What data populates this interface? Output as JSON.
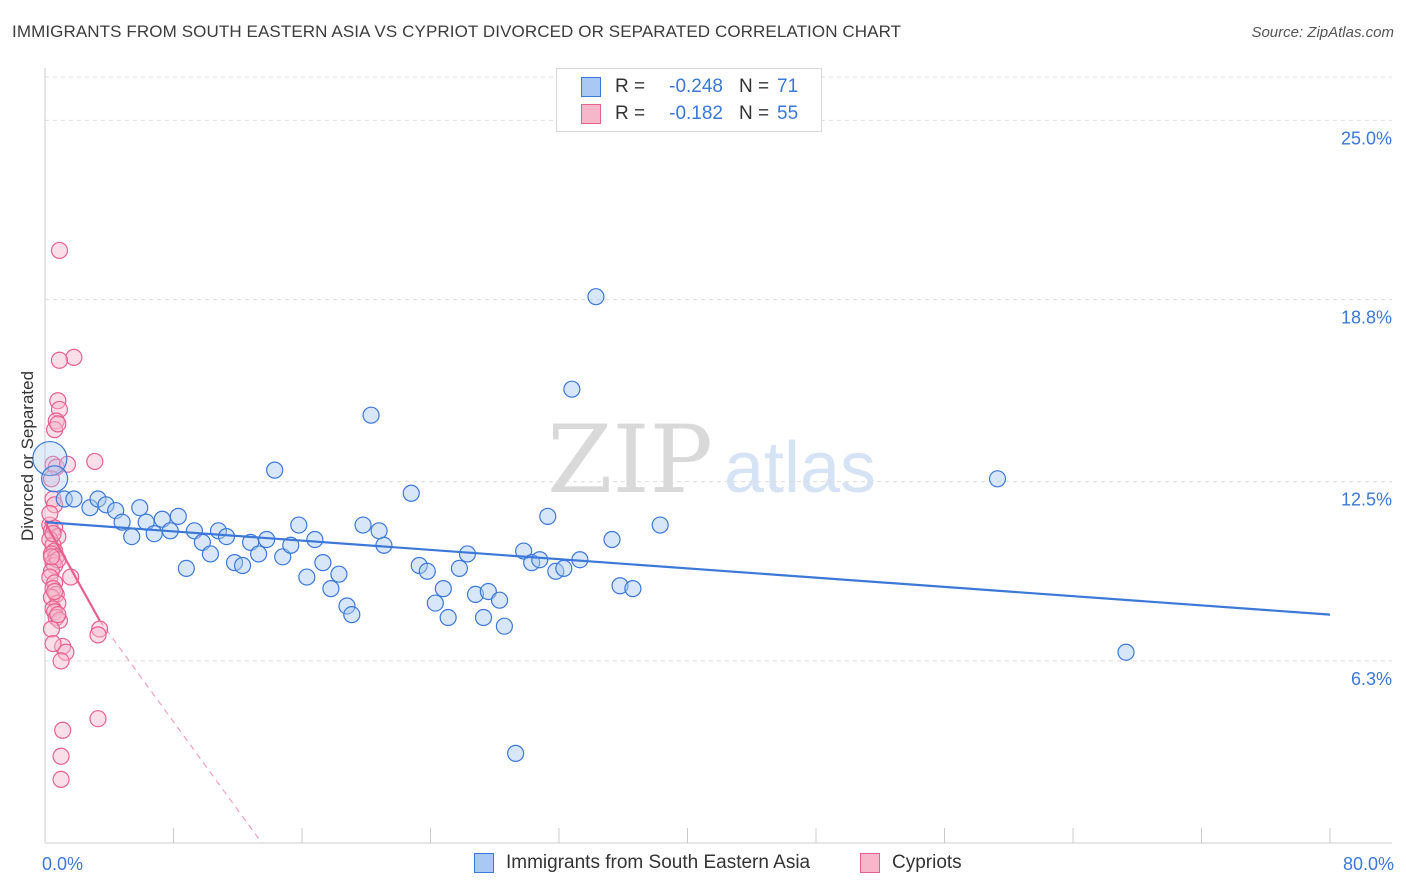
{
  "title": "IMMIGRANTS FROM SOUTH EASTERN ASIA VS CYPRIOT DIVORCED OR SEPARATED CORRELATION CHART",
  "source": "Source: ZipAtlas.com",
  "watermark": {
    "zip": "ZIP",
    "atlas": "atlas"
  },
  "colors": {
    "blue": "#3b78d8",
    "blue_fill": "#a9c8f3",
    "pink": "#e8608e",
    "pink_fill": "#f7b7cb",
    "grid": "#dcdcdc"
  },
  "legend": {
    "rows": [
      {
        "r_label": "R =",
        "r_value": "-0.248",
        "n_label": "N =",
        "n_value": "71"
      },
      {
        "r_label": "R =",
        "r_value": "-0.182",
        "n_label": "N =",
        "n_value": "55"
      }
    ]
  },
  "bottom_legend": [
    "Immigrants from South Eastern Asia",
    "Cypriots"
  ],
  "chart_data": {
    "type": "scatter",
    "title": "IMMIGRANTS FROM SOUTH EASTERN ASIA VS CYPRIOT DIVORCED OR SEPARATED CORRELATION CHART",
    "xlabel": "",
    "ylabel": "Divorced or Separated",
    "xlim": [
      0,
      80
    ],
    "ylim": [
      0,
      26.5
    ],
    "x_tick_labels": [
      "0.0%",
      "80.0%"
    ],
    "y_ticks": [
      6.3,
      12.5,
      18.8,
      25.0
    ],
    "y_tick_labels": [
      "6.3%",
      "12.5%",
      "18.8%",
      "25.0%"
    ],
    "series": [
      {
        "name": "Immigrants from South Eastern Asia",
        "r": -0.248,
        "n": 71,
        "trend": {
          "x": [
            0,
            80
          ],
          "y": [
            11.1,
            7.9
          ]
        },
        "points": [
          [
            0.3,
            13.3
          ],
          [
            0.6,
            12.6
          ],
          [
            1.2,
            11.9
          ],
          [
            1.8,
            11.9
          ],
          [
            2.8,
            11.6
          ],
          [
            3.3,
            11.9
          ],
          [
            3.8,
            11.7
          ],
          [
            4.4,
            11.5
          ],
          [
            4.8,
            11.1
          ],
          [
            5.4,
            10.6
          ],
          [
            5.9,
            11.6
          ],
          [
            6.3,
            11.1
          ],
          [
            6.8,
            10.7
          ],
          [
            7.3,
            11.2
          ],
          [
            7.8,
            10.8
          ],
          [
            8.3,
            11.3
          ],
          [
            8.8,
            9.5
          ],
          [
            9.3,
            10.8
          ],
          [
            9.8,
            10.4
          ],
          [
            10.3,
            10.0
          ],
          [
            10.8,
            10.8
          ],
          [
            11.3,
            10.6
          ],
          [
            11.8,
            9.7
          ],
          [
            12.3,
            9.6
          ],
          [
            12.8,
            10.4
          ],
          [
            13.3,
            10.0
          ],
          [
            13.8,
            10.5
          ],
          [
            14.3,
            12.9
          ],
          [
            14.8,
            9.9
          ],
          [
            15.3,
            10.3
          ],
          [
            15.8,
            11.0
          ],
          [
            16.3,
            9.2
          ],
          [
            16.8,
            10.5
          ],
          [
            17.3,
            9.7
          ],
          [
            17.8,
            8.8
          ],
          [
            18.3,
            9.3
          ],
          [
            18.8,
            8.2
          ],
          [
            19.1,
            7.9
          ],
          [
            19.8,
            11.0
          ],
          [
            20.3,
            14.8
          ],
          [
            20.8,
            10.8
          ],
          [
            21.1,
            10.3
          ],
          [
            22.8,
            12.1
          ],
          [
            23.3,
            9.6
          ],
          [
            23.8,
            9.4
          ],
          [
            24.3,
            8.3
          ],
          [
            24.8,
            8.8
          ],
          [
            25.1,
            7.8
          ],
          [
            25.8,
            9.5
          ],
          [
            26.3,
            10.0
          ],
          [
            26.8,
            8.6
          ],
          [
            27.3,
            7.8
          ],
          [
            27.6,
            8.7
          ],
          [
            28.3,
            8.4
          ],
          [
            28.6,
            7.5
          ],
          [
            29.3,
            3.1
          ],
          [
            29.8,
            10.1
          ],
          [
            30.3,
            9.7
          ],
          [
            30.8,
            9.8
          ],
          [
            31.3,
            11.3
          ],
          [
            31.8,
            9.4
          ],
          [
            32.3,
            9.5
          ],
          [
            32.8,
            15.7
          ],
          [
            33.3,
            9.8
          ],
          [
            34.3,
            18.9
          ],
          [
            35.3,
            10.5
          ],
          [
            35.8,
            8.9
          ],
          [
            36.6,
            8.8
          ],
          [
            38.3,
            11.0
          ],
          [
            59.3,
            12.6
          ],
          [
            67.3,
            6.6
          ]
        ]
      },
      {
        "name": "Cypriots",
        "r": -0.182,
        "n": 55,
        "trend": {
          "x": [
            0,
            3.4
          ],
          "y": [
            11.1,
            7.7
          ]
        },
        "trend_dashed": {
          "x": [
            3.4,
            13.5
          ],
          "y": [
            7.7,
            0
          ]
        },
        "points": [
          [
            0.9,
            20.5
          ],
          [
            1.8,
            16.8
          ],
          [
            0.9,
            16.7
          ],
          [
            0.8,
            15.3
          ],
          [
            0.9,
            15.0
          ],
          [
            0.7,
            14.6
          ],
          [
            0.6,
            14.3
          ],
          [
            0.8,
            14.5
          ],
          [
            3.1,
            13.2
          ],
          [
            0.5,
            13.1
          ],
          [
            0.7,
            13.0
          ],
          [
            1.4,
            13.1
          ],
          [
            0.4,
            12.6
          ],
          [
            0.5,
            11.9
          ],
          [
            0.6,
            11.7
          ],
          [
            0.3,
            11.0
          ],
          [
            0.4,
            10.8
          ],
          [
            0.6,
            10.9
          ],
          [
            0.8,
            10.6
          ],
          [
            0.3,
            10.5
          ],
          [
            0.5,
            10.3
          ],
          [
            0.6,
            10.1
          ],
          [
            0.4,
            10.0
          ],
          [
            0.7,
            9.9
          ],
          [
            0.5,
            9.7
          ],
          [
            0.6,
            9.6
          ],
          [
            0.8,
            9.8
          ],
          [
            0.4,
            9.4
          ],
          [
            0.3,
            9.2
          ],
          [
            0.6,
            9.0
          ],
          [
            0.5,
            8.8
          ],
          [
            0.7,
            8.6
          ],
          [
            0.4,
            8.5
          ],
          [
            0.8,
            8.3
          ],
          [
            0.5,
            8.1
          ],
          [
            0.6,
            8.0
          ],
          [
            0.7,
            7.8
          ],
          [
            0.9,
            7.7
          ],
          [
            0.4,
            7.4
          ],
          [
            1.6,
            9.2
          ],
          [
            3.4,
            7.4
          ],
          [
            3.3,
            7.2
          ],
          [
            1.1,
            6.8
          ],
          [
            1.3,
            6.6
          ],
          [
            1.0,
            6.3
          ],
          [
            3.3,
            4.3
          ],
          [
            1.1,
            3.9
          ],
          [
            1.0,
            3.0
          ],
          [
            1.0,
            2.2
          ],
          [
            0.3,
            11.4
          ],
          [
            0.5,
            10.7
          ],
          [
            0.4,
            9.9
          ],
          [
            0.6,
            8.7
          ],
          [
            0.8,
            7.9
          ],
          [
            0.5,
            6.9
          ]
        ]
      }
    ]
  }
}
